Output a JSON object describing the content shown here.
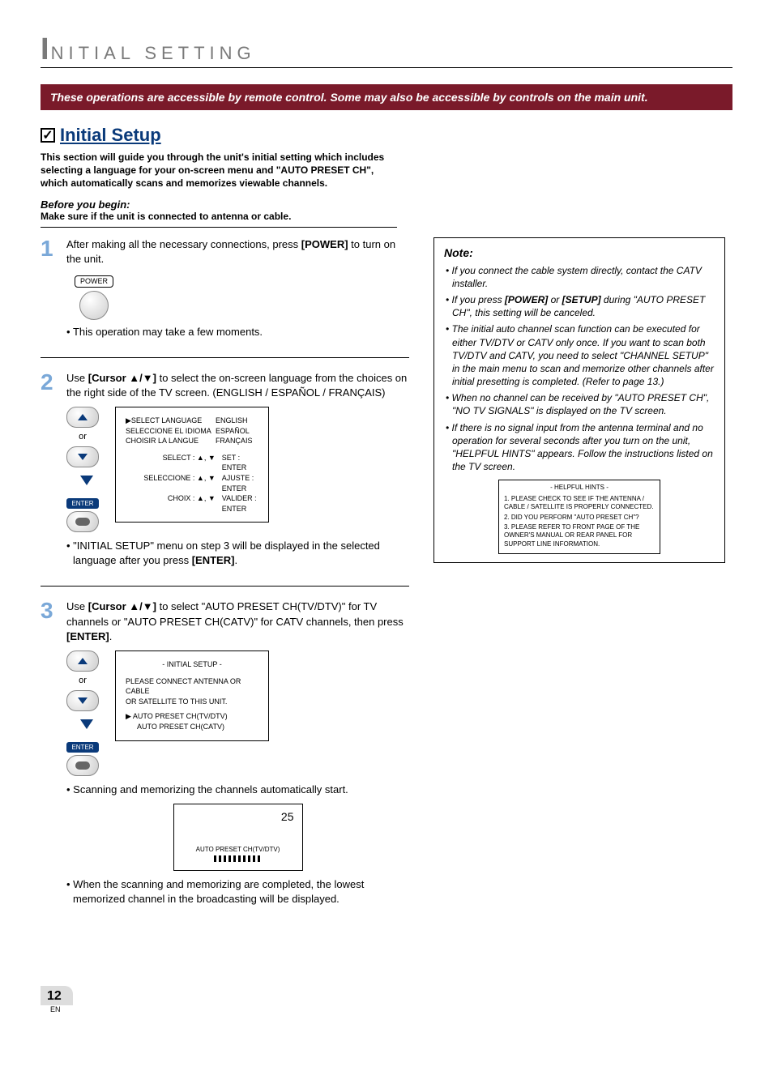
{
  "section_header": "INITIAL  SETTING",
  "banner": "These operations are accessible by remote control. Some may also be accessible by controls on the main unit.",
  "checkbox_glyph": "✓",
  "main_title": "Initial Setup",
  "intro": "This section will guide you through the unit's initial setting which includes selecting a language for your on-screen menu and \"AUTO PRESET CH\", which automatically scans and memorizes viewable channels.",
  "before_begin_title": "Before you begin:",
  "before_begin_text": "Make sure if the unit is connected to antenna or cable.",
  "steps": [
    {
      "num": "1",
      "text_before": "After making all the necessary connections, press ",
      "bold": "[POWER]",
      "text_after": " to turn on the unit.",
      "power_label": "POWER",
      "bullet": "This operation may take a few moments."
    },
    {
      "num": "2",
      "text_before": "Use ",
      "bold": "[Cursor ▲/▼]",
      "text_after": " to select the on-screen language from the choices on the right side of the TV screen. (ENGLISH / ESPAÑOL / FRANÇAIS)",
      "or_label": "or",
      "enter_label": "ENTER",
      "screen": {
        "rows": [
          {
            "l": "▶SELECT LANGUAGE",
            "r": "ENGLISH"
          },
          {
            "l": "SELECCIONE  EL  IDIOMA",
            "r": "ESPAÑOL"
          },
          {
            "l": "CHOISIR  LA LANGUE",
            "r": "FRANÇAIS"
          }
        ],
        "rows2": [
          {
            "l": "SELECT : ▲, ▼",
            "r": "SET : ENTER"
          },
          {
            "l": "SELECCIONE : ▲, ▼",
            "r": "AJUSTE : ENTER"
          },
          {
            "l": "CHOIX : ▲, ▼",
            "r": "VALIDER : ENTER"
          }
        ]
      },
      "bullet_before": "\"INITIAL SETUP\" menu on step 3 will be displayed in the selected language after you press ",
      "bullet_bold": "[ENTER]",
      "bullet_after": "."
    },
    {
      "num": "3",
      "text_before": "Use ",
      "bold": "[Cursor ▲/▼]",
      "text_mid": " to select \"AUTO PRESET CH(TV/DTV)\" for TV channels or \"AUTO PRESET CH(CATV)\" for CATV channels, then press ",
      "bold2": "[ENTER]",
      "text_after": ".",
      "or_label": "or",
      "enter_label": "ENTER",
      "screen": {
        "title": "- INITIAL SETUP -",
        "line1": "PLEASE CONNECT ANTENNA OR CABLE",
        "line2": "OR SATELLITE TO THIS UNIT.",
        "opt1": "▶  AUTO PRESET CH(TV/DTV)",
        "opt2": "AUTO PRESET CH(CATV)"
      },
      "bullet1": "Scanning and memorizing the channels automatically start.",
      "scan": {
        "num": "25",
        "label": "AUTO PRESET CH(TV/DTV)"
      },
      "bullet2": "When the scanning and memorizing are completed, the lowest memorized channel in the broadcasting will be displayed."
    }
  ],
  "note": {
    "title": "Note:",
    "items": [
      "If you connect the cable system directly, contact the CATV installer.",
      "If you press <b>[POWER]</b> or <b>[SETUP]</b> during \"AUTO PRESET CH\", this setting will be canceled.",
      "The initial auto channel scan function can be executed for either TV/DTV or CATV only once. If you want to scan both TV/DTV and CATV, you need to select \"CHANNEL SETUP\" in the main menu to scan and memorize other channels after initial presetting is completed. (Refer to page 13.)",
      "When no channel can be received by \"AUTO PRESET CH\", \"NO TV SIGNALS\" is displayed on the TV screen.",
      "If there is no signal input from the antenna terminal and no operation for several seconds after you turn on the unit, \"HELPFUL HINTS\" appears. Follow the instructions listed on the TV screen."
    ],
    "hints": {
      "title": "- HELPFUL HINTS -",
      "lines": [
        "1. PLEASE CHECK TO SEE IF THE ANTENNA / CABLE / SATELLITE IS PROPERLY CONNECTED.",
        "2. DID YOU PERFORM \"AUTO PRESET CH\"?",
        "3. PLEASE REFER TO FRONT PAGE OF THE OWNER'S MANUAL OR REAR PANEL FOR SUPPORT LINE INFORMATION."
      ]
    }
  },
  "page": {
    "num": "12",
    "en": "EN"
  }
}
